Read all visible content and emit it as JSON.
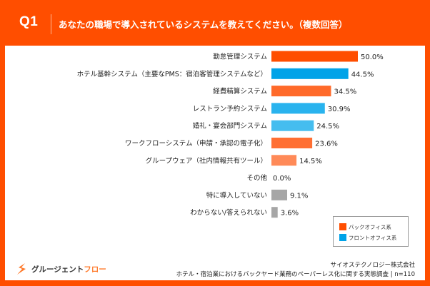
{
  "header": {
    "question_number": "Q1",
    "question_text": "あなたの職場で導入されているシステムを教えてください。（複数回答）"
  },
  "colors": {
    "frame": "#FF4E00",
    "back_office": "#FF4E00",
    "front_office": "#00A3E8",
    "none": "#A6A6A6"
  },
  "chart_data": {
    "type": "bar",
    "orientation": "horizontal",
    "title": "あなたの職場で導入されているシステムを教えてください。（複数回答）",
    "xlim": [
      0,
      50
    ],
    "unit": "%",
    "grid": false,
    "legend_position": "bottom-right",
    "categories": [
      "勤怠管理システム",
      "ホテル基幹システム（主要なPMS：宿泊客管理システムなど）",
      "経費精算システム",
      "レストラン予約システム",
      "婚礼・宴会部門システム",
      "ワークフローシステム（申請・承認の電子化）",
      "グループウェア（社内情報共有ツール）",
      "その他",
      "特に導入していない",
      "わからない/答えられない"
    ],
    "values": [
      50.0,
      44.5,
      34.5,
      30.9,
      24.5,
      23.6,
      14.5,
      0.0,
      9.1,
      3.6
    ],
    "value_labels": [
      "50.0%",
      "44.5%",
      "34.5%",
      "30.9%",
      "24.5%",
      "23.6%",
      "14.5%",
      "0.0%",
      "9.1%",
      "3.6%"
    ],
    "groups": [
      "back",
      "front",
      "back",
      "front",
      "front",
      "back",
      "back",
      "none",
      "none",
      "none"
    ],
    "bar_colors": [
      "#FF4E00",
      "#00A3E8",
      "#FF6A2A",
      "#29B3EE",
      "#45BDEF",
      "#FF6F33",
      "#FF8A58",
      "#A6A6A6",
      "#A6A6A6",
      "#A6A6A6"
    ],
    "legend": [
      {
        "label": "バックオフィス系",
        "color": "#FF4E00"
      },
      {
        "label": "フロントオフィス系",
        "color": "#00A3E8"
      }
    ]
  },
  "footer": {
    "logo_text_main": "グルージェント",
    "logo_text_accent": "フロー",
    "company": "サイオステクノロジー株式会社",
    "survey": "ホテル・宿泊業におけるバックヤード業務のペーパーレス化に関する実態調査 | n=110"
  }
}
